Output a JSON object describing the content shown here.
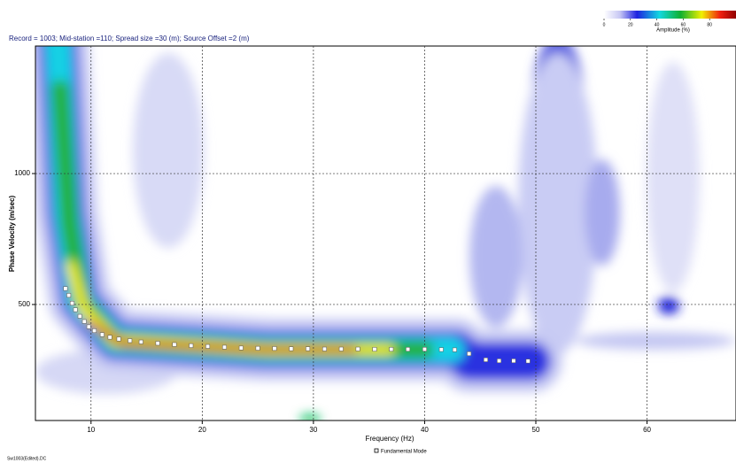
{
  "chart_data": {
    "type": "scatter",
    "title": "Record = 1003; Mid-station =110; Spread size =30 (m); Source Offset =2 (m)",
    "x_label": "Frequency (Hz)",
    "y_label": "Phase Velocity (m/sec)",
    "file_label": "Sw1003(Edited).DC",
    "xlim": [
      5,
      68
    ],
    "ylim": [
      57,
      1487
    ],
    "xticks": [
      10,
      20,
      30,
      40,
      50,
      60
    ],
    "yticks": [
      500,
      1000
    ],
    "grid": true,
    "series": [
      {
        "name": "Fundamental Mode",
        "color": "#ffffff",
        "x": [
          7.7,
          8.0,
          8.3,
          8.6,
          9.0,
          9.4,
          9.8,
          10.3,
          11,
          11.7,
          12.5,
          13.5,
          14.5,
          16,
          17.5,
          19,
          20.5,
          22,
          23.5,
          25,
          26.5,
          28,
          29.5,
          31,
          32.5,
          34,
          35.5,
          37,
          38.5,
          40,
          41.5,
          42.7,
          44,
          45.5,
          46.7,
          48,
          49.3
        ],
        "values": [
          561,
          535,
          505,
          480,
          455,
          435,
          415,
          400,
          385,
          375,
          368,
          362,
          357,
          352,
          347,
          343,
          340,
          337,
          334,
          333,
          332,
          331,
          331,
          330,
          330,
          330,
          329,
          329,
          329,
          329,
          328,
          327,
          312,
          289,
          285,
          285,
          284
        ]
      }
    ],
    "colorbar": {
      "label": "Amplitude (%)",
      "lim": [
        0,
        100
      ],
      "ticks": [
        0,
        20,
        40,
        60,
        80
      ]
    }
  }
}
